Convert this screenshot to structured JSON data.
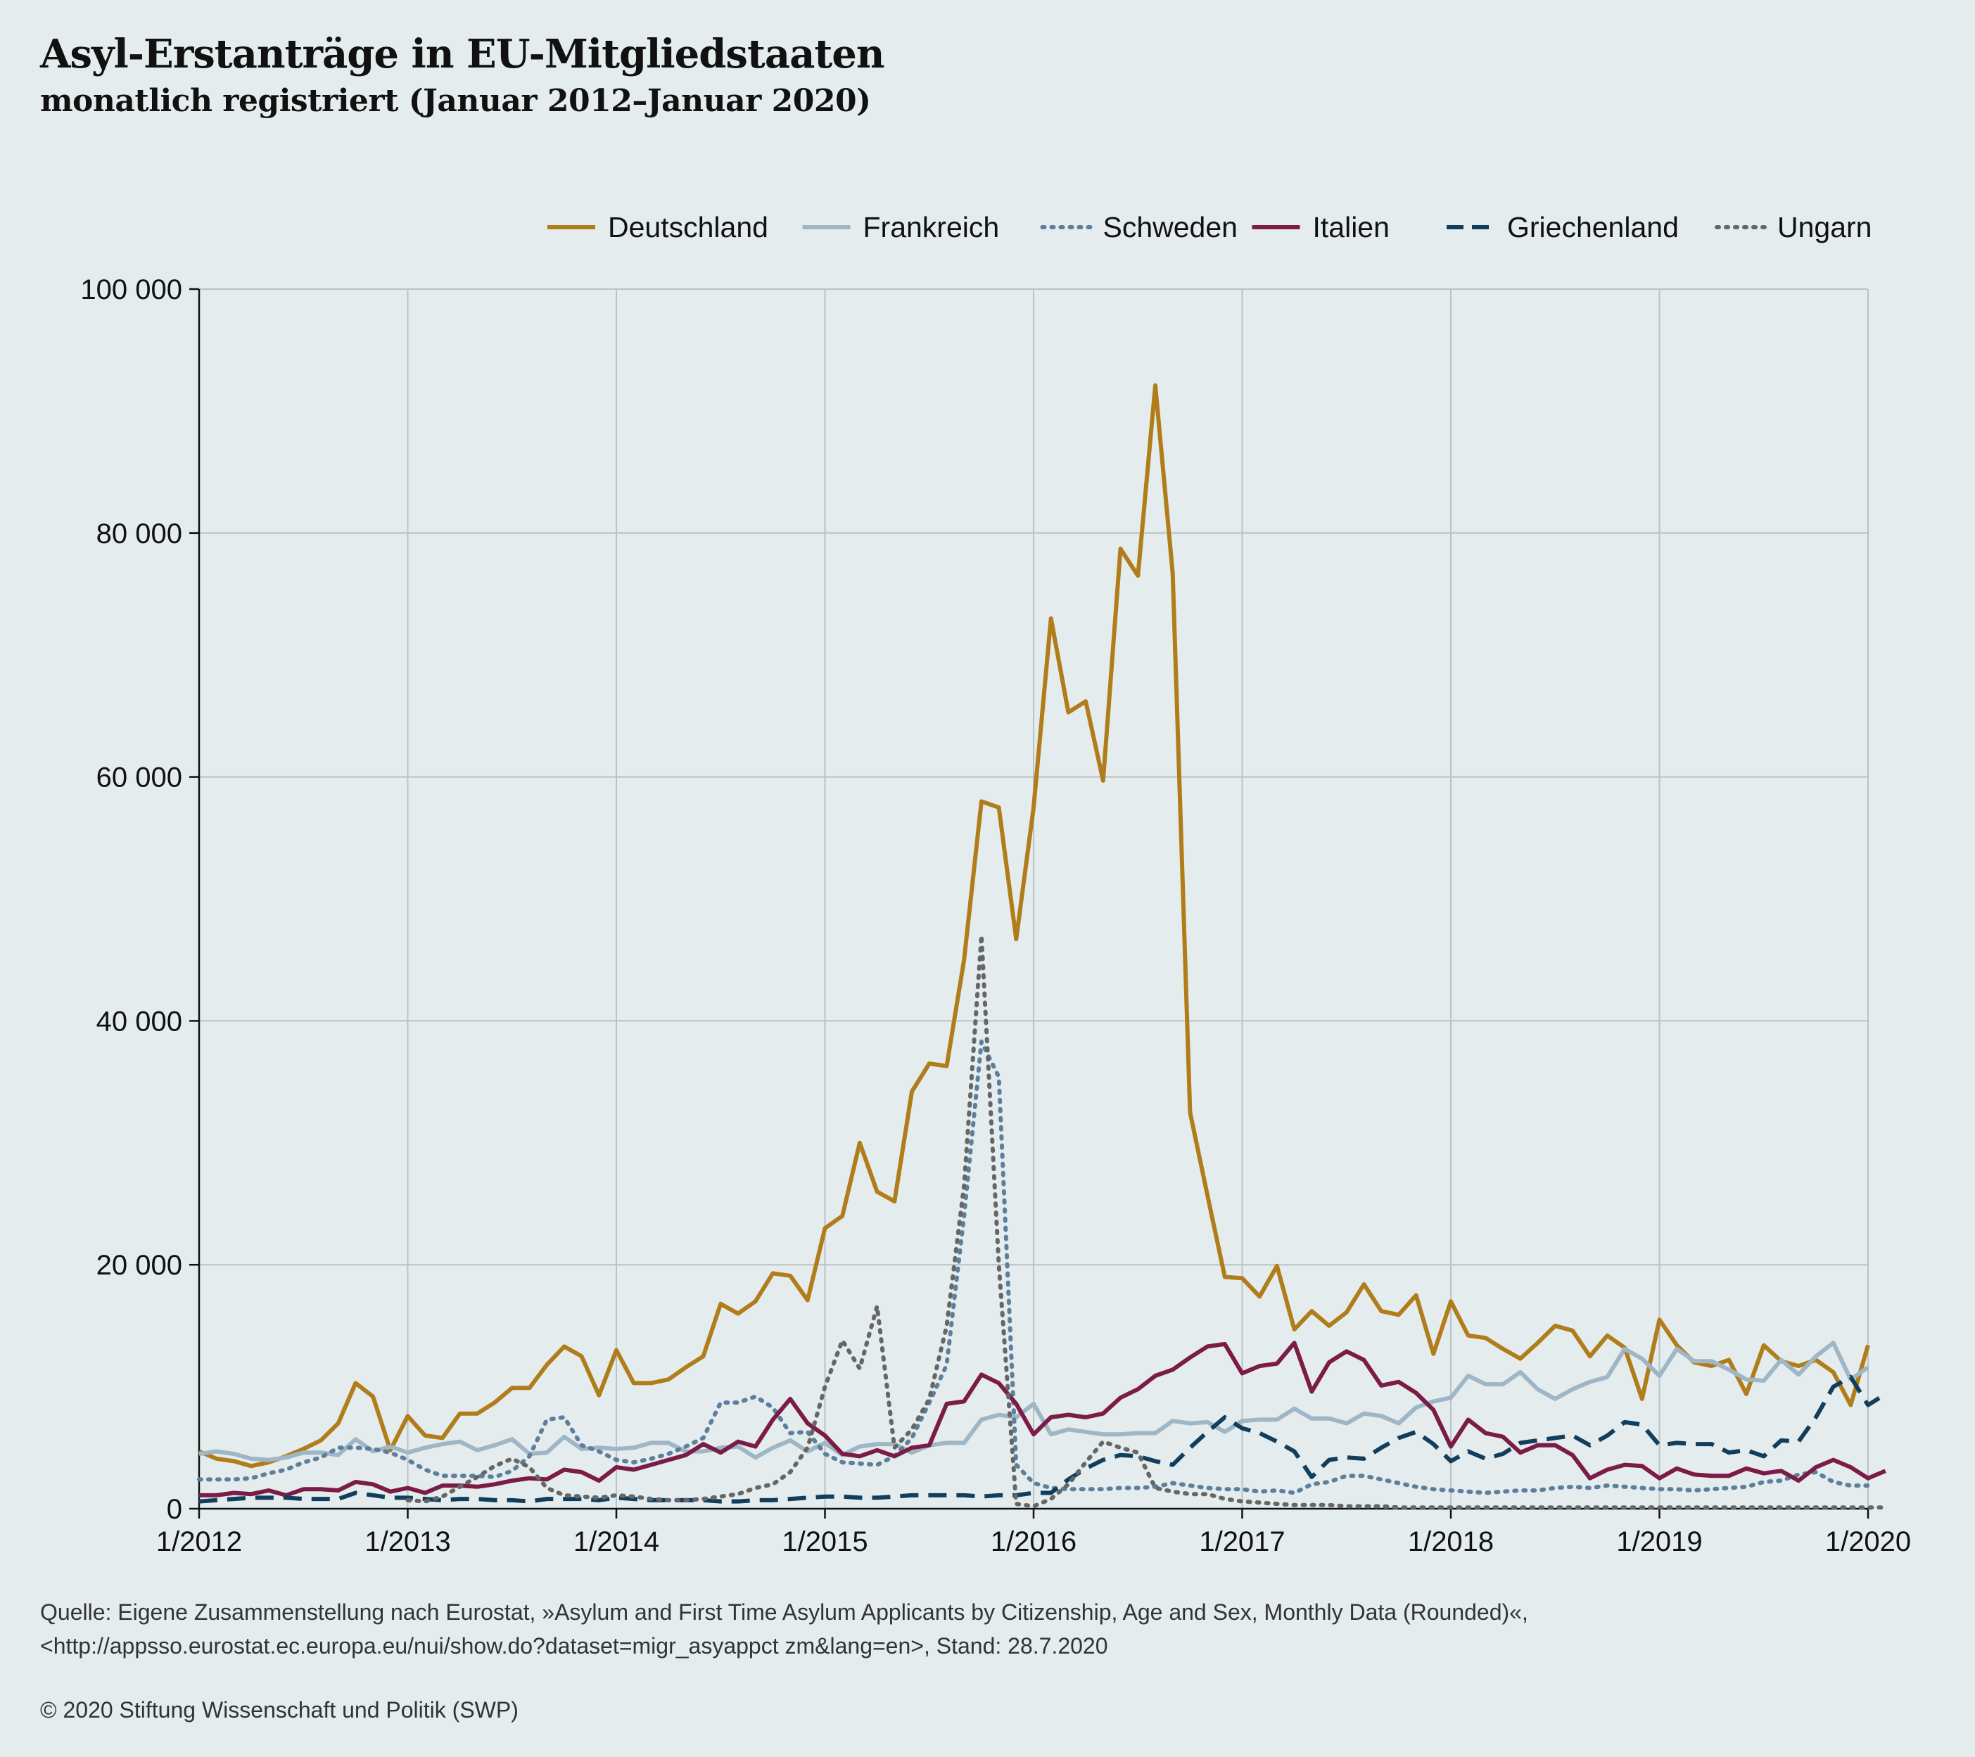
{
  "title": "Asyl-Erstanträge in EU-Mitgliedstaaten",
  "subtitle": "monatlich registriert (Januar 2012–Januar 2020)",
  "source_line1": "Quelle: Eigene Zusammenstellung nach Eurostat, »Asylum and First Time Asylum Applicants by Citizenship, Age and Sex, Monthly Data (Rounded)«,",
  "source_line2": "<http://appsso.eurostat.ec.europa.eu/nui/show.do?dataset=migr_asyappct zm&lang=en>, Stand: 28.7.2020",
  "copyright": "© 2020 Stiftung Wissenschaft und Politik (SWP)",
  "chart_data": {
    "type": "line",
    "title": "Asyl-Erstanträge in EU-Mitgliedstaaten",
    "subtitle": "monatlich registriert (Januar 2012–Januar 2020)",
    "xlabel": "",
    "ylabel": "",
    "x_range": [
      "1/2012",
      "1/2020"
    ],
    "x_ticks": [
      "1/2012",
      "1/2013",
      "1/2014",
      "1/2015",
      "1/2016",
      "1/2017",
      "1/2018",
      "1/2019",
      "1/2020"
    ],
    "ylim": [
      0,
      100000
    ],
    "y_ticks": [
      0,
      20000,
      40000,
      60000,
      80000,
      100000
    ],
    "y_tick_labels": [
      "0",
      "20 000",
      "40 000",
      "60 000",
      "80 000",
      "100 000"
    ],
    "grid": true,
    "legend_position": "top-right",
    "series": [
      {
        "name": "Deutschland",
        "color": "#b07d1a",
        "style": "solid",
        "values": [
          4700,
          4100,
          3900,
          3500,
          3800,
          4300,
          4900,
          5600,
          7000,
          10300,
          9200,
          4800,
          7600,
          6000,
          5800,
          7800,
          7800,
          8700,
          9900,
          9900,
          11800,
          13300,
          12500,
          9300,
          13000,
          10300,
          10300,
          10600,
          11600,
          12500,
          16800,
          16000,
          17000,
          19300,
          19100,
          17100,
          23000,
          24000,
          30000,
          26000,
          25200,
          34200,
          36500,
          36300,
          45000,
          58000,
          57500,
          46700,
          57500,
          73000,
          65300,
          66200,
          59700,
          78700,
          76500,
          92100,
          76700,
          32500,
          25700,
          19000,
          18900,
          17400,
          19900,
          14700,
          16200,
          15000,
          16100,
          18400,
          16200,
          15900,
          17500,
          12700,
          17000,
          14200,
          14000,
          13100,
          12300,
          13600,
          15000,
          14600,
          12500,
          14200,
          13200,
          9000,
          15500,
          13400,
          12000,
          11700,
          12200,
          9400,
          13400,
          12100,
          11700,
          12200,
          11200,
          8500,
          13400
        ]
      },
      {
        "name": "Frankreich",
        "color": "#9fb6c6",
        "style": "solid",
        "values": [
          4500,
          4700,
          4500,
          4100,
          4000,
          4200,
          4600,
          4600,
          4400,
          5700,
          4700,
          5100,
          4600,
          5000,
          5300,
          5500,
          4800,
          5200,
          5700,
          4500,
          4600,
          5900,
          4900,
          5000,
          4900,
          5000,
          5400,
          5400,
          4700,
          4700,
          5000,
          5100,
          4200,
          5000,
          5600,
          4700,
          5400,
          4400,
          5100,
          5300,
          5300,
          4600,
          5200,
          5400,
          5400,
          7300,
          7700,
          7500,
          8600,
          6100,
          6500,
          6300,
          6100,
          6100,
          6200,
          6200,
          7200,
          7000,
          7100,
          6300,
          7200,
          7300,
          7300,
          8200,
          7400,
          7400,
          7000,
          7800,
          7600,
          7000,
          8300,
          8800,
          9100,
          10900,
          10200,
          10200,
          11200,
          9800,
          9000,
          9800,
          10400,
          10800,
          13100,
          12300,
          10900,
          13100,
          12100,
          12100,
          11400,
          10600,
          10500,
          12200,
          11000,
          12500,
          13600,
          10600,
          11600
        ]
      },
      {
        "name": "Schweden",
        "color": "#5d7f9d",
        "style": "dotted",
        "values": [
          2400,
          2400,
          2400,
          2500,
          2900,
          3200,
          3800,
          4200,
          5000,
          5000,
          4900,
          4600,
          4000,
          3200,
          2700,
          2700,
          2700,
          2600,
          3100,
          4300,
          7300,
          7500,
          5200,
          4700,
          4000,
          3800,
          4100,
          4500,
          5100,
          5800,
          8700,
          8700,
          9200,
          8300,
          6200,
          6300,
          4500,
          3800,
          3700,
          3600,
          4300,
          5800,
          8700,
          11800,
          24000,
          38300,
          35400,
          3600,
          2100,
          1700,
          1600,
          1600,
          1600,
          1700,
          1700,
          1800,
          2100,
          1900,
          1700,
          1600,
          1600,
          1400,
          1500,
          1300,
          2000,
          2200,
          2700,
          2700,
          2400,
          2100,
          1800,
          1600,
          1500,
          1400,
          1300,
          1400,
          1500,
          1500,
          1700,
          1800,
          1700,
          1900,
          1800,
          1700,
          1600,
          1600,
          1500,
          1600,
          1700,
          1800,
          2200,
          2300,
          2800,
          3000,
          2200,
          1900,
          1900
        ]
      },
      {
        "name": "Italien",
        "color": "#7b1c47",
        "style": "solid",
        "values": [
          1100,
          1100,
          1300,
          1200,
          1500,
          1100,
          1600,
          1600,
          1500,
          2200,
          2000,
          1400,
          1700,
          1300,
          1900,
          1900,
          1800,
          2000,
          2300,
          2500,
          2400,
          3200,
          3000,
          2300,
          3400,
          3200,
          3600,
          4000,
          4400,
          5300,
          4600,
          5500,
          5100,
          7300,
          9000,
          7000,
          6000,
          4500,
          4300,
          4800,
          4300,
          5000,
          5200,
          8600,
          8800,
          11000,
          10300,
          8600,
          6100,
          7500,
          7700,
          7500,
          7800,
          9100,
          9800,
          10900,
          11400,
          12400,
          13300,
          13500,
          11100,
          11700,
          11900,
          13600,
          9600,
          12000,
          12900,
          12200,
          10100,
          10400,
          9500,
          8100,
          5100,
          7300,
          6200,
          5900,
          4600,
          5200,
          5200,
          4400,
          2500,
          3200,
          3600,
          3500,
          2500,
          3300,
          2800,
          2700,
          2700,
          3300,
          2900,
          3100,
          2300,
          3400,
          4000,
          3400,
          2500,
          3100
        ]
      },
      {
        "name": "Griechenland",
        "color": "#123e5d",
        "style": "dashed",
        "values": [
          600,
          700,
          800,
          900,
          900,
          900,
          800,
          800,
          800,
          1300,
          1100,
          900,
          900,
          800,
          700,
          800,
          800,
          700,
          700,
          600,
          800,
          800,
          800,
          700,
          900,
          800,
          700,
          700,
          700,
          700,
          600,
          600,
          700,
          700,
          800,
          900,
          1000,
          1000,
          900,
          900,
          1000,
          1100,
          1100,
          1100,
          1100,
          1000,
          1100,
          1100,
          1300,
          1300,
          2400,
          3300,
          4000,
          4400,
          4300,
          3900,
          3600,
          5000,
          6300,
          7500,
          6600,
          6200,
          5500,
          4700,
          2600,
          4000,
          4200,
          4100,
          5000,
          5800,
          6300,
          5300,
          3900,
          4700,
          4100,
          4500,
          5400,
          5600,
          5800,
          6000,
          5200,
          6000,
          7100,
          6900,
          5200,
          5400,
          5300,
          5300,
          4600,
          4800,
          4300,
          5600,
          5500,
          7500,
          10000,
          10800,
          8500,
          9400
        ]
      },
      {
        "name": "Ungarn",
        "color": "#666666",
        "style": "dotted",
        "values": [
          null,
          null,
          null,
          null,
          null,
          null,
          null,
          null,
          null,
          null,
          null,
          null,
          700,
          600,
          1000,
          1800,
          2600,
          3500,
          4100,
          3400,
          1700,
          1100,
          1000,
          900,
          1100,
          1000,
          800,
          700,
          700,
          800,
          1000,
          1200,
          1700,
          2000,
          3000,
          5000,
          10000,
          13800,
          11500,
          16600,
          5000,
          6500,
          9000,
          15000,
          26500,
          47000,
          20000,
          400,
          200,
          800,
          2000,
          3800,
          5500,
          5000,
          4600,
          1700,
          1400,
          1200,
          1200,
          800,
          600,
          500,
          400,
          300,
          300,
          300,
          200,
          200,
          200,
          100,
          100,
          100,
          100,
          100,
          100,
          100,
          100,
          100,
          100,
          100,
          100,
          100,
          100,
          100,
          100,
          100,
          100,
          100,
          100,
          100,
          100,
          100,
          100,
          100,
          100,
          100,
          100,
          100
        ]
      }
    ]
  }
}
